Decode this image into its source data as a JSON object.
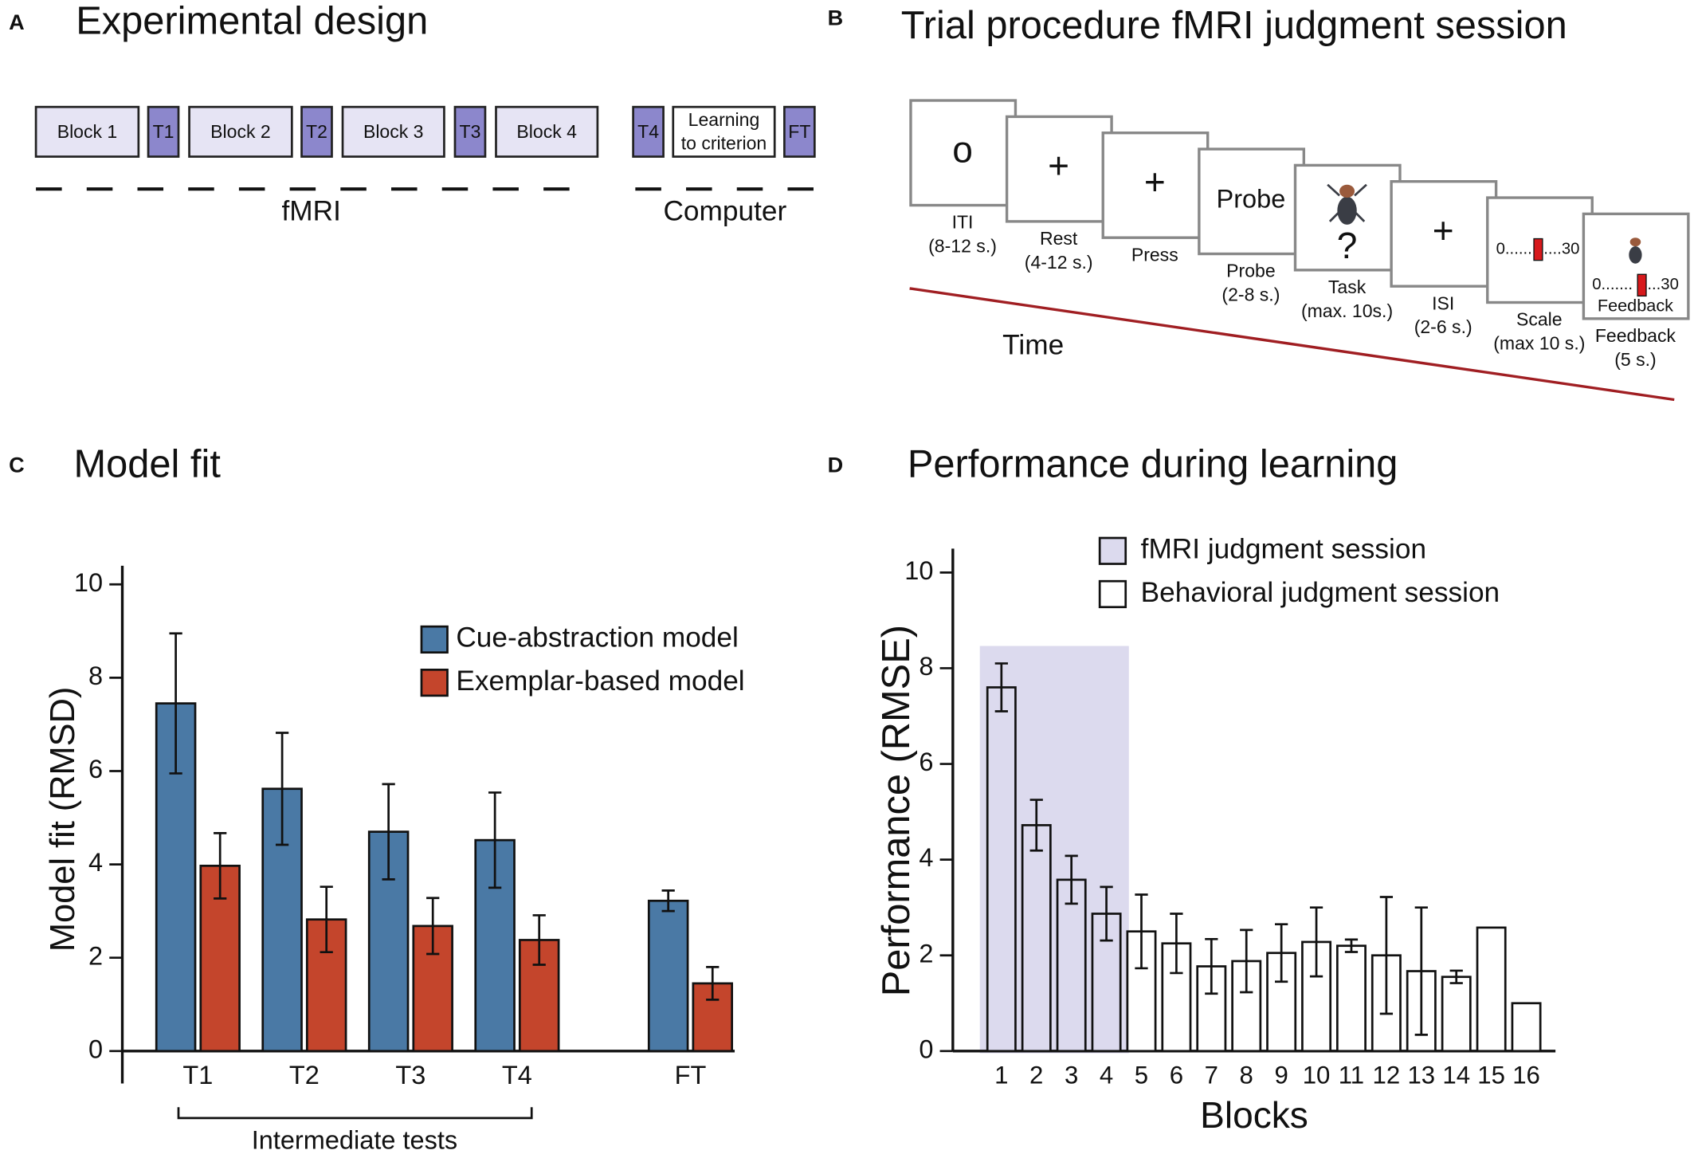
{
  "panel_a": {
    "letter": "A",
    "title": "Experimental design",
    "blocks": [
      {
        "lines": [
          "Block 1"
        ]
      },
      {
        "lines": [
          "T1"
        ]
      },
      {
        "lines": [
          "Block 2"
        ]
      },
      {
        "lines": [
          "T2"
        ]
      },
      {
        "lines": [
          "Block 3"
        ]
      },
      {
        "lines": [
          "T3"
        ]
      },
      {
        "lines": [
          "Block 4"
        ]
      },
      {
        "lines": [
          "T4"
        ]
      },
      {
        "lines": [
          "Learning",
          "to criterion"
        ]
      },
      {
        "lines": [
          "FT"
        ]
      }
    ],
    "phases": [
      "fMRI",
      "Computer"
    ]
  },
  "panel_b": {
    "letter": "B",
    "title": "Trial procedure fMRI judgment session",
    "time_label": "Time",
    "screens": [
      {
        "content": "o",
        "caption": [
          "ITI",
          "(8-12 s.)"
        ]
      },
      {
        "content": "+",
        "caption": [
          "Rest",
          "(4-12 s.)"
        ]
      },
      {
        "content": "+",
        "color": "#d7191c",
        "caption": [
          "Press"
        ]
      },
      {
        "content": "Probe",
        "caption": [
          "Probe",
          "(2-8 s.)"
        ]
      },
      {
        "content": "?",
        "caption": [
          "Task",
          "(max. 10s.)"
        ]
      },
      {
        "content": "+",
        "caption": [
          "ISI",
          "(2-6 s.)"
        ]
      },
      {
        "scale": [
          "0.......",
          "....30"
        ],
        "caption": [
          "Scale",
          "(max 10 s.)"
        ]
      },
      {
        "scale": [
          "0.......",
          "...30"
        ],
        "label": "Feedback",
        "caption": [
          "Feedback",
          "(5 s.)"
        ]
      }
    ]
  },
  "chart_data": [
    {
      "type": "bar",
      "letter": "C",
      "title": "Model fit",
      "ylabel": "Model fit (RMSD)",
      "categories": [
        "T1",
        "T2",
        "T3",
        "T4",
        "FT"
      ],
      "ylim": [
        0,
        10.4
      ],
      "yticks": [
        0,
        2,
        4,
        6,
        8,
        10
      ],
      "annotation": "Intermediate tests",
      "series": [
        {
          "name": "Cue-abstraction model",
          "color": "#4a79a5",
          "values": [
            7.45,
            5.62,
            4.7,
            4.52,
            3.22
          ],
          "errors": [
            1.5,
            1.2,
            1.02,
            1.02,
            0.22
          ]
        },
        {
          "name": "Exemplar-based model",
          "color": "#c4452c",
          "values": [
            3.97,
            2.82,
            2.68,
            2.38,
            1.45
          ],
          "errors": [
            0.7,
            0.7,
            0.6,
            0.53,
            0.35
          ]
        }
      ]
    },
    {
      "type": "bar",
      "letter": "D",
      "title": "Performance during learning",
      "ylabel": "Performance (RMSE)",
      "xlabel": "Blocks",
      "categories": [
        "1",
        "2",
        "3",
        "4",
        "5",
        "6",
        "7",
        "8",
        "9",
        "10",
        "11",
        "12",
        "13",
        "14",
        "15",
        "16"
      ],
      "ylim": [
        0,
        10.5
      ],
      "yticks": [
        0,
        2,
        4,
        6,
        8,
        10
      ],
      "series": [
        {
          "name": "fMRI judgment session",
          "color": "#dcdaee",
          "values": [
            7.6,
            4.72,
            3.58,
            2.87,
            null,
            null,
            null,
            null,
            null,
            null,
            null,
            null,
            null,
            null,
            null,
            null
          ],
          "errors": [
            0.5,
            0.53,
            0.5,
            0.56,
            null,
            null,
            null,
            null,
            null,
            null,
            null,
            null,
            null,
            null,
            null,
            null
          ]
        },
        {
          "name": "Behavioral judgment session",
          "color": "#ffffff",
          "values": [
            null,
            null,
            null,
            null,
            2.5,
            2.25,
            1.77,
            1.88,
            2.05,
            2.28,
            2.2,
            2.0,
            1.67,
            1.55,
            2.58,
            1.0
          ],
          "errors": [
            null,
            null,
            null,
            null,
            0.77,
            0.62,
            0.57,
            0.65,
            0.6,
            0.72,
            0.13,
            1.22,
            1.33,
            0.13,
            null,
            null
          ]
        }
      ]
    }
  ]
}
